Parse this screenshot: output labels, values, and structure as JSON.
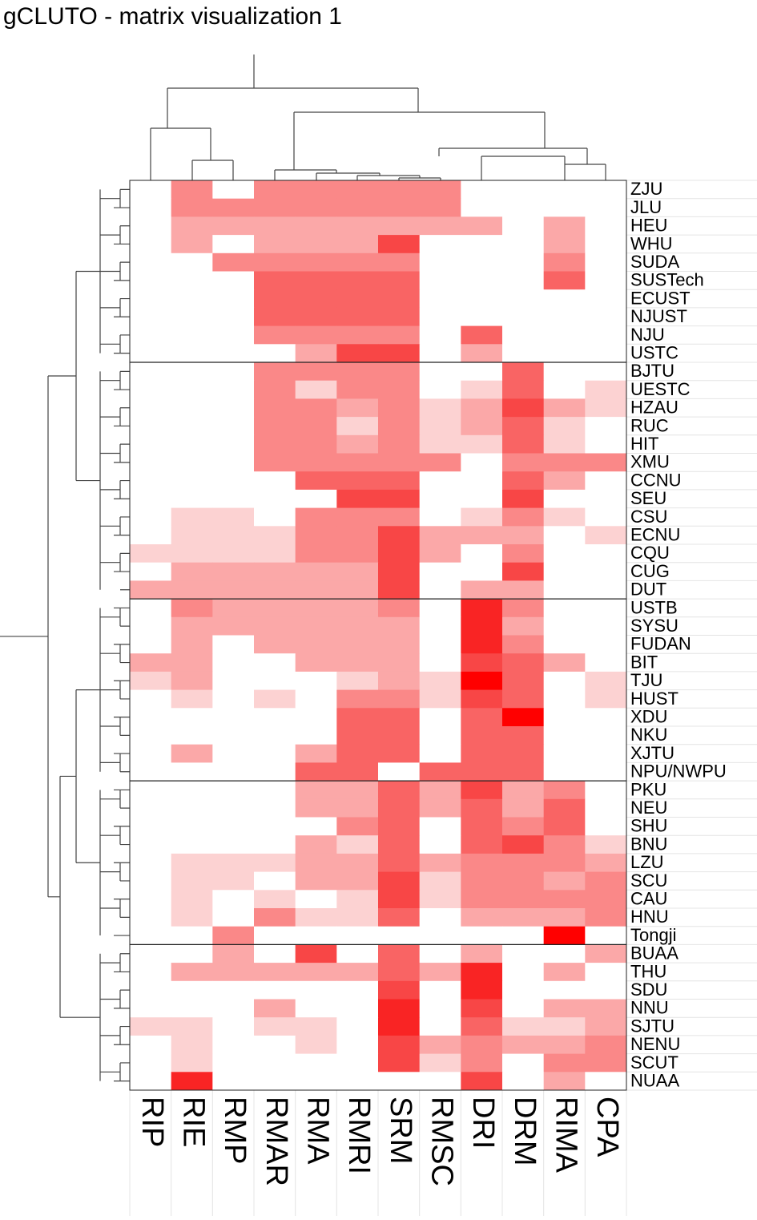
{
  "chart_data": {
    "type": "heatmap",
    "title": "gCLUTO - matrix visualization 1",
    "columns": [
      "RIP",
      "RIE",
      "RMP",
      "RMAR",
      "RMA",
      "RMRI",
      "SRM",
      "RMSC",
      "DRI",
      "DRM",
      "RIMA",
      "CPA"
    ],
    "rows": [
      "ZJU",
      "JLU",
      "HEU",
      "WHU",
      "SUDA",
      "SUSTech",
      "ECUST",
      "NJUST",
      "NJU",
      "USTC",
      "BJTU",
      "UESTC",
      "HZAU",
      "RUC",
      "HIT",
      "XMU",
      "CCNU",
      "SEU",
      "CSU",
      "ECNU",
      "CQU",
      "CUG",
      "DUT",
      "USTB",
      "SYSU",
      "FUDAN",
      "BIT",
      "TJU",
      "HUST",
      "XDU",
      "NKU",
      "XJTU",
      "NPU/NWPU",
      "PKU",
      "NEU",
      "SHU",
      "BNU",
      "LZU",
      "SCU",
      "CAU",
      "HNU",
      "Tongji",
      "BUAA",
      "THU",
      "SDU",
      "NNU",
      "SJTU",
      "NENU",
      "SCUT",
      "NUAA"
    ],
    "row_clusters": [
      10,
      13,
      10,
      9,
      8
    ],
    "color_scale": [
      "#ffffff",
      "#fcd2d2",
      "#fba8a8",
      "#fa8888",
      "#f96464",
      "#f84646",
      "#f92424",
      "#ff0000"
    ],
    "values": [
      [
        0,
        3,
        0,
        3,
        3,
        3,
        3,
        3,
        0,
        0,
        0,
        0
      ],
      [
        0,
        3,
        3,
        3,
        3,
        3,
        3,
        3,
        0,
        0,
        0,
        0
      ],
      [
        0,
        2,
        2,
        2,
        2,
        2,
        2,
        2,
        2,
        0,
        2,
        0
      ],
      [
        0,
        2,
        0,
        2,
        2,
        2,
        5,
        0,
        0,
        0,
        2,
        0
      ],
      [
        0,
        0,
        3,
        3,
        3,
        3,
        3,
        0,
        0,
        0,
        3,
        0
      ],
      [
        0,
        0,
        0,
        4,
        4,
        4,
        4,
        0,
        0,
        0,
        4,
        0
      ],
      [
        0,
        0,
        0,
        4,
        4,
        4,
        4,
        0,
        0,
        0,
        0,
        0
      ],
      [
        0,
        0,
        0,
        4,
        4,
        4,
        4,
        0,
        0,
        0,
        0,
        0
      ],
      [
        0,
        0,
        0,
        3,
        3,
        3,
        3,
        0,
        4,
        0,
        0,
        0
      ],
      [
        0,
        0,
        0,
        0,
        2,
        5,
        5,
        0,
        2,
        0,
        0,
        0
      ],
      [
        0,
        0,
        0,
        3,
        3,
        3,
        3,
        0,
        0,
        4,
        0,
        0
      ],
      [
        0,
        0,
        0,
        3,
        1,
        3,
        3,
        0,
        1,
        4,
        0,
        1
      ],
      [
        0,
        0,
        0,
        3,
        3,
        2,
        3,
        1,
        2,
        5,
        2,
        1
      ],
      [
        0,
        0,
        0,
        3,
        3,
        1,
        3,
        1,
        2,
        4,
        1,
        0
      ],
      [
        0,
        0,
        0,
        3,
        3,
        2,
        3,
        1,
        1,
        4,
        1,
        0
      ],
      [
        0,
        0,
        0,
        3,
        3,
        3,
        3,
        3,
        0,
        3,
        3,
        3
      ],
      [
        0,
        0,
        0,
        0,
        4,
        4,
        4,
        0,
        0,
        4,
        2,
        0
      ],
      [
        0,
        0,
        0,
        0,
        0,
        5,
        5,
        0,
        0,
        5,
        0,
        0
      ],
      [
        0,
        1,
        1,
        0,
        3,
        3,
        3,
        0,
        1,
        3,
        1,
        0
      ],
      [
        0,
        1,
        1,
        1,
        3,
        3,
        5,
        2,
        2,
        2,
        0,
        1
      ],
      [
        1,
        1,
        1,
        1,
        3,
        3,
        5,
        2,
        0,
        3,
        0,
        0
      ],
      [
        0,
        2,
        2,
        2,
        2,
        2,
        5,
        0,
        0,
        5,
        0,
        0
      ],
      [
        2,
        2,
        2,
        2,
        2,
        2,
        5,
        0,
        2,
        2,
        0,
        0
      ],
      [
        0,
        3,
        2,
        2,
        2,
        2,
        3,
        0,
        6,
        3,
        0,
        0
      ],
      [
        0,
        2,
        2,
        2,
        2,
        2,
        2,
        0,
        6,
        2,
        0,
        0
      ],
      [
        0,
        2,
        0,
        2,
        2,
        2,
        2,
        0,
        6,
        3,
        0,
        0
      ],
      [
        2,
        2,
        0,
        0,
        2,
        2,
        2,
        0,
        5,
        4,
        2,
        0
      ],
      [
        1,
        2,
        0,
        0,
        0,
        1,
        2,
        1,
        7,
        4,
        0,
        1
      ],
      [
        0,
        1,
        0,
        1,
        0,
        3,
        3,
        1,
        5,
        4,
        0,
        1
      ],
      [
        0,
        0,
        0,
        0,
        0,
        4,
        4,
        0,
        4,
        7,
        0,
        0
      ],
      [
        0,
        0,
        0,
        0,
        0,
        4,
        4,
        0,
        4,
        4,
        0,
        0
      ],
      [
        0,
        2,
        0,
        0,
        2,
        4,
        4,
        0,
        4,
        4,
        0,
        0
      ],
      [
        0,
        0,
        0,
        0,
        4,
        4,
        0,
        4,
        4,
        4,
        0,
        0
      ],
      [
        0,
        0,
        0,
        0,
        2,
        2,
        4,
        2,
        5,
        2,
        3,
        0
      ],
      [
        0,
        0,
        0,
        0,
        2,
        2,
        4,
        2,
        4,
        2,
        4,
        0
      ],
      [
        0,
        0,
        0,
        0,
        0,
        3,
        4,
        0,
        4,
        3,
        4,
        0
      ],
      [
        0,
        0,
        0,
        0,
        2,
        1,
        4,
        0,
        4,
        5,
        3,
        1
      ],
      [
        0,
        1,
        1,
        1,
        2,
        2,
        4,
        2,
        3,
        3,
        3,
        2
      ],
      [
        0,
        1,
        1,
        0,
        2,
        2,
        5,
        1,
        3,
        3,
        2,
        3
      ],
      [
        0,
        1,
        0,
        1,
        0,
        1,
        5,
        1,
        3,
        3,
        3,
        3
      ],
      [
        0,
        1,
        0,
        3,
        1,
        1,
        4,
        0,
        2,
        2,
        2,
        3
      ],
      [
        0,
        0,
        3,
        0,
        0,
        0,
        0,
        0,
        0,
        0,
        7,
        0
      ],
      [
        0,
        0,
        2,
        0,
        5,
        0,
        4,
        0,
        2,
        0,
        0,
        2
      ],
      [
        0,
        2,
        2,
        2,
        2,
        2,
        4,
        2,
        6,
        0,
        2,
        0
      ],
      [
        0,
        0,
        0,
        0,
        0,
        0,
        5,
        0,
        6,
        0,
        0,
        0
      ],
      [
        0,
        0,
        0,
        2,
        0,
        0,
        6,
        0,
        5,
        0,
        2,
        2
      ],
      [
        1,
        1,
        0,
        1,
        1,
        0,
        6,
        0,
        4,
        1,
        1,
        2
      ],
      [
        0,
        1,
        0,
        0,
        1,
        0,
        5,
        2,
        3,
        2,
        2,
        3
      ],
      [
        0,
        1,
        0,
        0,
        0,
        0,
        5,
        1,
        3,
        0,
        3,
        3
      ],
      [
        0,
        6,
        0,
        0,
        0,
        0,
        0,
        0,
        5,
        0,
        2,
        0
      ]
    ]
  }
}
